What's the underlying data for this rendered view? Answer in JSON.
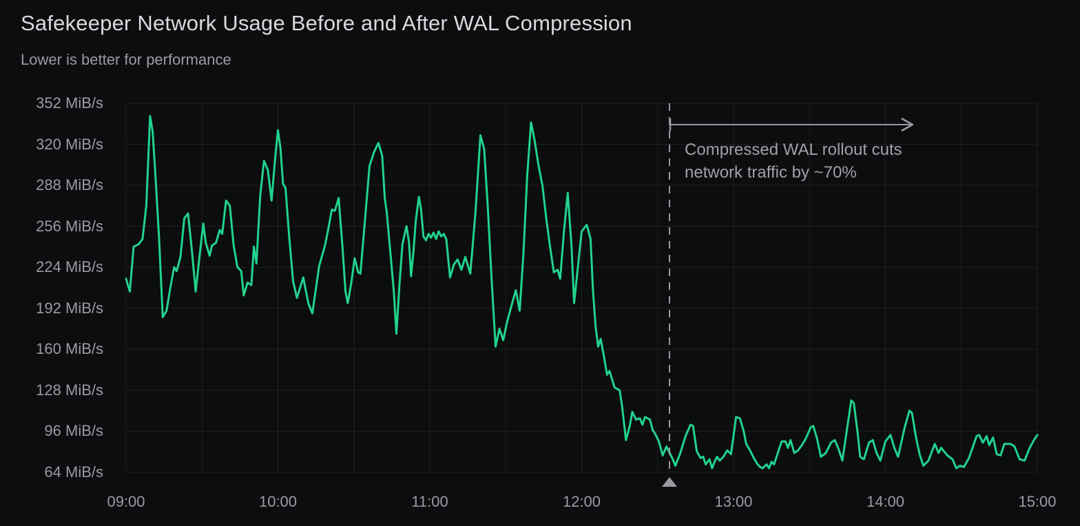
{
  "header": {
    "title": "Safekeeper Network Usage Before and After WAL Compression",
    "subtitle": "Lower is better for performance"
  },
  "chart_data": {
    "type": "line",
    "title": "Safekeeper Network Usage Before and After WAL Compression",
    "subtitle": "Lower is better for performance",
    "unit": "MiB/s",
    "xlabel": "",
    "ylabel": "",
    "grid": {
      "on": true,
      "color": "rgba(255,255,255,0.08)",
      "x_step_minutes": 30
    },
    "xlim_minutes": [
      0,
      360
    ],
    "ylim": [
      64,
      352
    ],
    "x_ticks": [
      {
        "minute": 0,
        "label": "09:00"
      },
      {
        "minute": 60,
        "label": "10:00"
      },
      {
        "minute": 120,
        "label": "11:00"
      },
      {
        "minute": 180,
        "label": "12:00"
      },
      {
        "minute": 240,
        "label": "13:00"
      },
      {
        "minute": 300,
        "label": "14:00"
      },
      {
        "minute": 360,
        "label": "15:00"
      }
    ],
    "y_ticks": [
      {
        "value": 352,
        "label": "352 MiB/s"
      },
      {
        "value": 320,
        "label": "320 MiB/s"
      },
      {
        "value": 288,
        "label": "288 MiB/s"
      },
      {
        "value": 256,
        "label": "256 MiB/s"
      },
      {
        "value": 224,
        "label": "224 MiB/s"
      },
      {
        "value": 192,
        "label": "192 MiB/s"
      },
      {
        "value": 160,
        "label": "160 MiB/s"
      },
      {
        "value": 128,
        "label": "128 MiB/s"
      },
      {
        "value": 96,
        "label": "96 MiB/s"
      },
      {
        "value": 64,
        "label": "64 MiB/s"
      }
    ],
    "annotation": {
      "line1": "Compressed WAL rollout cuts",
      "line2": "network traffic by ~70%",
      "rollout_minute": 214.7,
      "arrow_to_minute": 310.7,
      "color": "#9a9ba0"
    },
    "series": [
      {
        "name": "Safekeeper network usage",
        "color": "#21d38e",
        "points_min_mibps": [
          [
            0,
            215
          ],
          [
            1.5,
            205
          ],
          [
            3,
            240
          ],
          [
            5,
            242
          ],
          [
            6.5,
            246
          ],
          [
            8,
            272
          ],
          [
            9.5,
            342
          ],
          [
            10.5,
            330
          ],
          [
            11.5,
            299
          ],
          [
            13,
            248
          ],
          [
            14.5,
            185
          ],
          [
            16,
            190
          ],
          [
            17.5,
            208
          ],
          [
            19,
            224
          ],
          [
            20,
            221
          ],
          [
            21.5,
            232
          ],
          [
            23,
            262
          ],
          [
            24.5,
            266
          ],
          [
            26,
            237
          ],
          [
            27.5,
            205
          ],
          [
            29,
            232
          ],
          [
            30.5,
            258
          ],
          [
            31.5,
            243
          ],
          [
            33,
            233
          ],
          [
            34,
            241
          ],
          [
            35.5,
            243
          ],
          [
            37,
            253
          ],
          [
            38,
            250
          ],
          [
            39.5,
            276
          ],
          [
            41,
            272
          ],
          [
            42.5,
            241
          ],
          [
            44,
            224
          ],
          [
            45.5,
            221
          ],
          [
            46.5,
            202
          ],
          [
            48,
            212
          ],
          [
            49.5,
            210
          ],
          [
            50.5,
            240
          ],
          [
            51.5,
            227
          ],
          [
            53,
            280
          ],
          [
            54.5,
            307
          ],
          [
            56,
            300
          ],
          [
            57.5,
            276
          ],
          [
            59,
            311
          ],
          [
            60,
            331
          ],
          [
            61,
            317
          ],
          [
            62,
            289
          ],
          [
            63,
            286
          ],
          [
            64.5,
            247
          ],
          [
            66,
            213
          ],
          [
            67.5,
            200
          ],
          [
            70,
            216
          ],
          [
            72,
            196
          ],
          [
            73.6,
            188
          ],
          [
            76.3,
            225
          ],
          [
            78.6,
            241
          ],
          [
            80,
            255
          ],
          [
            81.3,
            269
          ],
          [
            82.5,
            268
          ],
          [
            84,
            278
          ],
          [
            85.5,
            240
          ],
          [
            86.7,
            205
          ],
          [
            87.6,
            196
          ],
          [
            89,
            212
          ],
          [
            90.3,
            231
          ],
          [
            91.7,
            220
          ],
          [
            92.6,
            219
          ],
          [
            94.4,
            261
          ],
          [
            96.2,
            303
          ],
          [
            98,
            314
          ],
          [
            99.7,
            321
          ],
          [
            101.2,
            311
          ],
          [
            102.2,
            278
          ],
          [
            103,
            267
          ],
          [
            104.9,
            225
          ],
          [
            105.8,
            205
          ],
          [
            106.8,
            172
          ],
          [
            108,
            210
          ],
          [
            109.2,
            242
          ],
          [
            110.8,
            256
          ],
          [
            111.8,
            243
          ],
          [
            112.6,
            217
          ],
          [
            113.5,
            235
          ],
          [
            114.5,
            261
          ],
          [
            115.7,
            279
          ],
          [
            116.5,
            270
          ],
          [
            117.5,
            248
          ],
          [
            118.5,
            245
          ],
          [
            119.5,
            250
          ],
          [
            120.5,
            247
          ],
          [
            121.5,
            251
          ],
          [
            122.5,
            246
          ],
          [
            123.5,
            252
          ],
          [
            124.5,
            248
          ],
          [
            125.5,
            250
          ],
          [
            126.5,
            246
          ],
          [
            128,
            216
          ],
          [
            129.5,
            226
          ],
          [
            131,
            230
          ],
          [
            132.5,
            222
          ],
          [
            134,
            232
          ],
          [
            136,
            219
          ],
          [
            138,
            266
          ],
          [
            140,
            327
          ],
          [
            141.5,
            316
          ],
          [
            143,
            268
          ],
          [
            144.5,
            212
          ],
          [
            146,
            162
          ],
          [
            147.5,
            176
          ],
          [
            149,
            167
          ],
          [
            150.5,
            181
          ],
          [
            152,
            192
          ],
          [
            154,
            206
          ],
          [
            155.5,
            190
          ],
          [
            157,
            235
          ],
          [
            158.5,
            296
          ],
          [
            160,
            337
          ],
          [
            161.5,
            322
          ],
          [
            163,
            303
          ],
          [
            164.5,
            288
          ],
          [
            166,
            262
          ],
          [
            167.5,
            240
          ],
          [
            169,
            220
          ],
          [
            170.5,
            222
          ],
          [
            171.5,
            215
          ],
          [
            173,
            252
          ],
          [
            174.5,
            282
          ],
          [
            176,
            240
          ],
          [
            177,
            196
          ],
          [
            178.5,
            224
          ],
          [
            180,
            252
          ],
          [
            182,
            257
          ],
          [
            183.5,
            246
          ],
          [
            184.5,
            205
          ],
          [
            185.5,
            178
          ],
          [
            186.5,
            162
          ],
          [
            187.5,
            168
          ],
          [
            189,
            152
          ],
          [
            190,
            140
          ],
          [
            191,
            143
          ],
          [
            193,
            130
          ],
          [
            195,
            128
          ],
          [
            196,
            115
          ],
          [
            197.5,
            89
          ],
          [
            199,
            100
          ],
          [
            200,
            111
          ],
          [
            201.5,
            105
          ],
          [
            203,
            106
          ],
          [
            204,
            101
          ],
          [
            205,
            107
          ],
          [
            207,
            105
          ],
          [
            208,
            97
          ],
          [
            209,
            94
          ],
          [
            210.5,
            88
          ],
          [
            212,
            77
          ],
          [
            213.5,
            84
          ],
          [
            214.5,
            80
          ],
          [
            216,
            74
          ],
          [
            217,
            69
          ],
          [
            219,
            79
          ],
          [
            221,
            92
          ],
          [
            223,
            101
          ],
          [
            224,
            100
          ],
          [
            225.5,
            80
          ],
          [
            227,
            75
          ],
          [
            228,
            76
          ],
          [
            229,
            70
          ],
          [
            230.5,
            74
          ],
          [
            231.5,
            67
          ],
          [
            232.5,
            72
          ],
          [
            233.5,
            76
          ],
          [
            234.5,
            73
          ],
          [
            236,
            76
          ],
          [
            237.5,
            81
          ],
          [
            239,
            78
          ],
          [
            241,
            107
          ],
          [
            242.5,
            106
          ],
          [
            244,
            96
          ],
          [
            245,
            86
          ],
          [
            246.5,
            81
          ],
          [
            248,
            75
          ],
          [
            249.5,
            70
          ],
          [
            250.5,
            68
          ],
          [
            251.5,
            67
          ],
          [
            253,
            70
          ],
          [
            254,
            67
          ],
          [
            255,
            72
          ],
          [
            256,
            70
          ],
          [
            257,
            76
          ],
          [
            259,
            88
          ],
          [
            260.5,
            88
          ],
          [
            261.5,
            83
          ],
          [
            262.5,
            89
          ],
          [
            264,
            79
          ],
          [
            265.5,
            81
          ],
          [
            267,
            85
          ],
          [
            268.5,
            90
          ],
          [
            270.5,
            99
          ],
          [
            271.5,
            100
          ],
          [
            273,
            90
          ],
          [
            274.5,
            76
          ],
          [
            276.5,
            79
          ],
          [
            278.5,
            87
          ],
          [
            280,
            89
          ],
          [
            281.5,
            82
          ],
          [
            283,
            73
          ],
          [
            285,
            100
          ],
          [
            286.5,
            120
          ],
          [
            287.5,
            118
          ],
          [
            289,
            95
          ],
          [
            290,
            76
          ],
          [
            291.5,
            74
          ],
          [
            293.5,
            87
          ],
          [
            295,
            89
          ],
          [
            296.5,
            79
          ],
          [
            298,
            73
          ],
          [
            300,
            88
          ],
          [
            302,
            93
          ],
          [
            303.5,
            83
          ],
          [
            305,
            76
          ],
          [
            307.5,
            98
          ],
          [
            309.5,
            112
          ],
          [
            310.5,
            110
          ],
          [
            312,
            92
          ],
          [
            313.5,
            78
          ],
          [
            315,
            69
          ],
          [
            317,
            73
          ],
          [
            319.5,
            86
          ],
          [
            321,
            79
          ],
          [
            322,
            83
          ],
          [
            324.5,
            77
          ],
          [
            326.5,
            74
          ],
          [
            328,
            67
          ],
          [
            329.5,
            69
          ],
          [
            331,
            68
          ],
          [
            333,
            75
          ],
          [
            336,
            92
          ],
          [
            337,
            93
          ],
          [
            338.5,
            87
          ],
          [
            340,
            92
          ],
          [
            341,
            85
          ],
          [
            342.5,
            91
          ],
          [
            344,
            78
          ],
          [
            345.5,
            77
          ],
          [
            347,
            86
          ],
          [
            349.5,
            86
          ],
          [
            351,
            84
          ],
          [
            353,
            74
          ],
          [
            355,
            73
          ],
          [
            357,
            83
          ],
          [
            359,
            90
          ],
          [
            360,
            93
          ]
        ]
      }
    ]
  }
}
